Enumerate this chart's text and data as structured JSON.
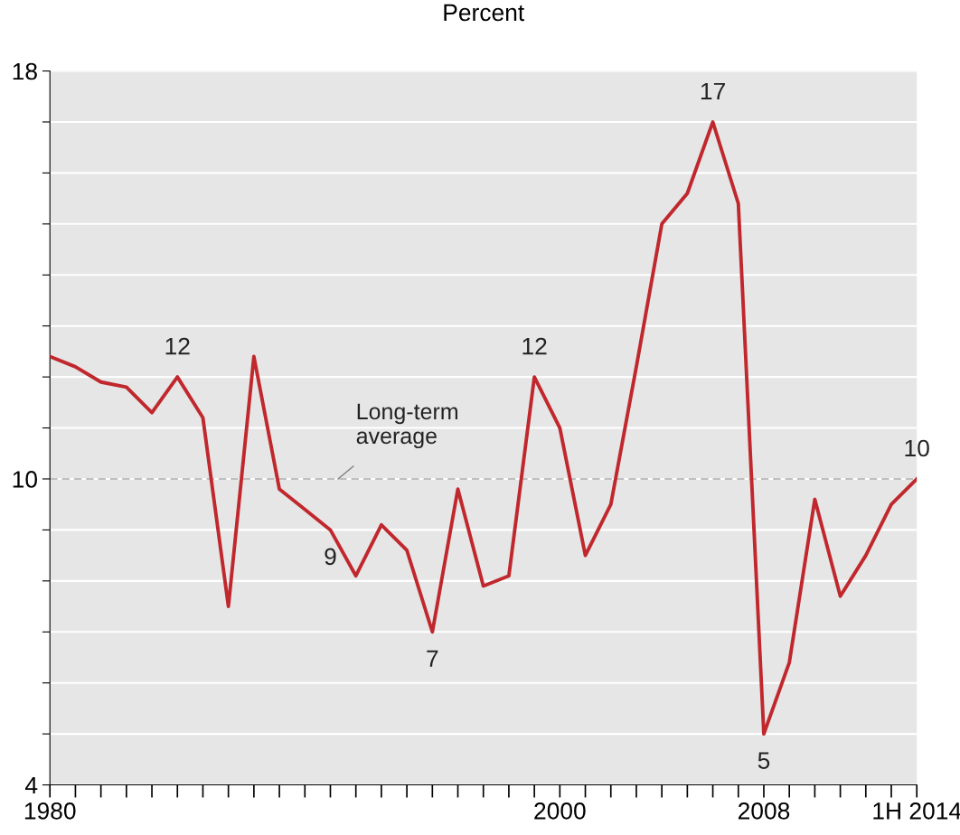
{
  "chart_data": {
    "type": "line",
    "title": "Percent",
    "x": [
      1980,
      1981,
      1982,
      1983,
      1984,
      1985,
      1986,
      1987,
      1988,
      1989,
      1990,
      1991,
      1992,
      1993,
      1994,
      1995,
      1996,
      1997,
      1998,
      1999,
      2000,
      2001,
      2002,
      2003,
      2004,
      2005,
      2006,
      2007,
      2008,
      2009,
      2010,
      2011,
      2012,
      2013,
      2014
    ],
    "series": [
      {
        "color": "#c0282d",
        "values": [
          12.4,
          12.2,
          11.9,
          11.8,
          11.3,
          12,
          11.2,
          7.5,
          12.4,
          9.8,
          9.4,
          9,
          8.1,
          9.1,
          8.6,
          7,
          9.8,
          7.9,
          8.1,
          12,
          11,
          8.5,
          9.5,
          12.2,
          15,
          15.6,
          17,
          15.4,
          5,
          6.4,
          9.6,
          7.7,
          8.5,
          9.5,
          10
        ],
        "value_labels": [
          null,
          null,
          null,
          null,
          null,
          "12",
          null,
          null,
          null,
          null,
          null,
          "9",
          null,
          null,
          null,
          "7",
          null,
          null,
          null,
          "12",
          null,
          null,
          null,
          null,
          null,
          null,
          "17",
          null,
          "5",
          null,
          null,
          null,
          null,
          null,
          "10"
        ]
      }
    ],
    "xlim": [
      1980,
      2014
    ],
    "xticks": [
      {
        "value": 1980,
        "label": "1980"
      },
      {
        "value": 1981,
        "label": null
      },
      {
        "value": 1982,
        "label": null
      },
      {
        "value": 1983,
        "label": null
      },
      {
        "value": 1984,
        "label": null
      },
      {
        "value": 1985,
        "label": null
      },
      {
        "value": 1986,
        "label": null
      },
      {
        "value": 1987,
        "label": null
      },
      {
        "value": 1988,
        "label": null
      },
      {
        "value": 1989,
        "label": null
      },
      {
        "value": 1990,
        "label": null
      },
      {
        "value": 1991,
        "label": null
      },
      {
        "value": 1992,
        "label": null
      },
      {
        "value": 1993,
        "label": null
      },
      {
        "value": 1994,
        "label": null
      },
      {
        "value": 1995,
        "label": null
      },
      {
        "value": 1996,
        "label": null
      },
      {
        "value": 1997,
        "label": null
      },
      {
        "value": 1998,
        "label": null
      },
      {
        "value": 1999,
        "label": null
      },
      {
        "value": 2000,
        "label": "2000"
      },
      {
        "value": 2001,
        "label": null
      },
      {
        "value": 2002,
        "label": null
      },
      {
        "value": 2003,
        "label": null
      },
      {
        "value": 2004,
        "label": null
      },
      {
        "value": 2005,
        "label": null
      },
      {
        "value": 2006,
        "label": null
      },
      {
        "value": 2007,
        "label": null
      },
      {
        "value": 2008,
        "label": "2008"
      },
      {
        "value": 2009,
        "label": null
      },
      {
        "value": 2010,
        "label": null
      },
      {
        "value": 2011,
        "label": null
      },
      {
        "value": 2012,
        "label": null
      },
      {
        "value": 2013,
        "label": null
      },
      {
        "value": 2014,
        "label": "1H 2014"
      }
    ],
    "ylim": [
      4,
      18
    ],
    "yticks": [
      4,
      {
        "value": 5,
        "label": null
      },
      {
        "value": 6,
        "label": null
      },
      {
        "value": 7,
        "label": null
      },
      {
        "value": 8,
        "label": null
      },
      {
        "value": 9,
        "label": null
      },
      10,
      {
        "value": 11,
        "label": null
      },
      {
        "value": 12,
        "label": null
      },
      {
        "value": 13,
        "label": null
      },
      {
        "value": 14,
        "label": null
      },
      {
        "value": 15,
        "label": null
      },
      {
        "value": 16,
        "label": null
      },
      {
        "value": 17,
        "label": null
      },
      18
    ],
    "grid": "y",
    "ref_lines": [
      {
        "axis": "y",
        "value": 10,
        "label": "Long-term average",
        "color": "#aaaaaa",
        "line_style": "dashed"
      }
    ]
  }
}
